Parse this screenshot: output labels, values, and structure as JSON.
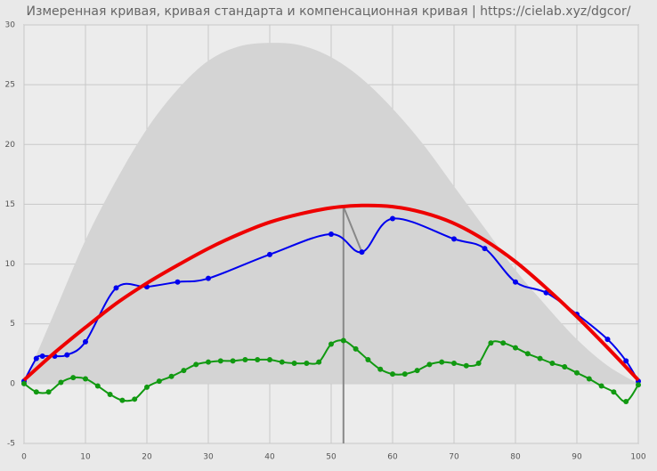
{
  "chart_data": {
    "type": "line",
    "title": "Измеренная кривая, кривая стандарта и компенсационная кривая | https://cielab.xyz/dgcor/",
    "xlim": [
      0,
      100
    ],
    "xticks": [
      0,
      10,
      20,
      30,
      40,
      50,
      60,
      70,
      80,
      90,
      100
    ],
    "ylim": [
      -5,
      30
    ],
    "yticks": [
      -5,
      0,
      5,
      10,
      15,
      20,
      25,
      30
    ],
    "grid": true,
    "vline_x": 52,
    "connector": {
      "x": [
        52,
        55
      ],
      "y": [
        14.8,
        11
      ]
    },
    "series": [
      {
        "kind": "area",
        "color": "#d4d4d4",
        "markers": false,
        "x": [
          0,
          5,
          10,
          15,
          20,
          25,
          30,
          35,
          40,
          45,
          50,
          55,
          60,
          65,
          70,
          75,
          80,
          85,
          90,
          95,
          100
        ],
        "values": [
          0,
          6,
          12,
          17,
          21.3,
          24.6,
          27,
          28.2,
          28.5,
          28.3,
          27.3,
          25.5,
          23,
          20,
          16.5,
          13,
          9.5,
          6.5,
          3.7,
          1.5,
          0
        ]
      },
      {
        "kind": "line",
        "color": "#0000ee",
        "markers": true,
        "width": 2,
        "x": [
          0,
          2,
          3,
          5,
          7,
          10,
          15,
          20,
          25,
          30,
          40,
          50,
          55,
          60,
          70,
          75,
          80,
          85,
          90,
          95,
          98,
          100
        ],
        "values": [
          0.2,
          2.1,
          2.3,
          2.3,
          2.4,
          3.5,
          8.0,
          8.1,
          8.5,
          8.8,
          10.8,
          12.5,
          11.0,
          13.8,
          12.1,
          11.3,
          8.5,
          7.6,
          5.8,
          3.7,
          1.9,
          0.2
        ]
      },
      {
        "kind": "line",
        "color": "#ee0000",
        "markers": false,
        "width": 4,
        "x": [
          0,
          5,
          10,
          15,
          20,
          25,
          30,
          35,
          40,
          45,
          50,
          55,
          60,
          65,
          70,
          75,
          80,
          85,
          90,
          95,
          100
        ],
        "values": [
          0.3,
          2.6,
          4.7,
          6.7,
          8.4,
          9.9,
          11.3,
          12.5,
          13.5,
          14.2,
          14.7,
          14.9,
          14.8,
          14.3,
          13.4,
          12.0,
          10.2,
          8.0,
          5.6,
          3.0,
          0.3
        ]
      },
      {
        "kind": "line",
        "color": "#119911",
        "markers": true,
        "width": 2,
        "x": [
          0,
          2,
          4,
          6,
          8,
          10,
          12,
          14,
          16,
          18,
          20,
          22,
          24,
          26,
          28,
          30,
          32,
          34,
          36,
          38,
          40,
          42,
          44,
          46,
          48,
          50,
          52,
          54,
          56,
          58,
          60,
          62,
          64,
          66,
          68,
          70,
          72,
          74,
          76,
          78,
          80,
          82,
          84,
          86,
          88,
          90,
          92,
          94,
          96,
          98,
          100
        ],
        "values": [
          0,
          -0.7,
          -0.7,
          0.1,
          0.5,
          0.4,
          -0.2,
          -0.9,
          -1.4,
          -1.3,
          -0.3,
          0.2,
          0.6,
          1.1,
          1.6,
          1.8,
          1.9,
          1.9,
          2.0,
          2.0,
          2.0,
          1.8,
          1.7,
          1.7,
          1.8,
          3.3,
          3.6,
          2.9,
          2.0,
          1.2,
          0.8,
          0.8,
          1.1,
          1.6,
          1.8,
          1.7,
          1.5,
          1.7,
          3.4,
          3.4,
          3.0,
          2.5,
          2.1,
          1.7,
          1.4,
          0.9,
          0.4,
          -0.2,
          -0.7,
          -1.5,
          -0.1
        ]
      }
    ]
  }
}
